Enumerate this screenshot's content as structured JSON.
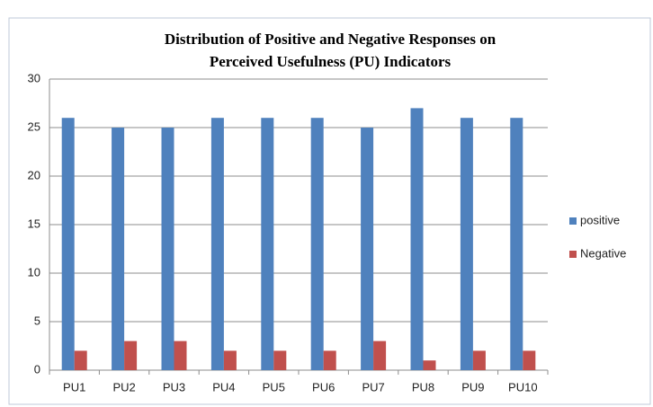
{
  "chart_data": {
    "type": "bar",
    "title": [
      "Distribution  of Positive and Negative Responses on",
      "Perceived Usefulness (PU) Indicators"
    ],
    "categories": [
      "PU1",
      "PU2",
      "PU3",
      "PU4",
      "PU5",
      "PU6",
      "PU7",
      "PU8",
      "PU9",
      "PU10"
    ],
    "series": [
      {
        "name": "positive",
        "color": "#4f81bd",
        "values": [
          26,
          25,
          25,
          26,
          26,
          26,
          25,
          27,
          26,
          26
        ]
      },
      {
        "name": "Negative",
        "color": "#c0504d",
        "values": [
          2,
          3,
          3,
          2,
          2,
          2,
          3,
          1,
          2,
          2
        ]
      }
    ],
    "ylim": [
      0,
      30
    ],
    "yticks": [
      0,
      5,
      10,
      15,
      20,
      25,
      30
    ],
    "grid": true,
    "legend": "right"
  }
}
